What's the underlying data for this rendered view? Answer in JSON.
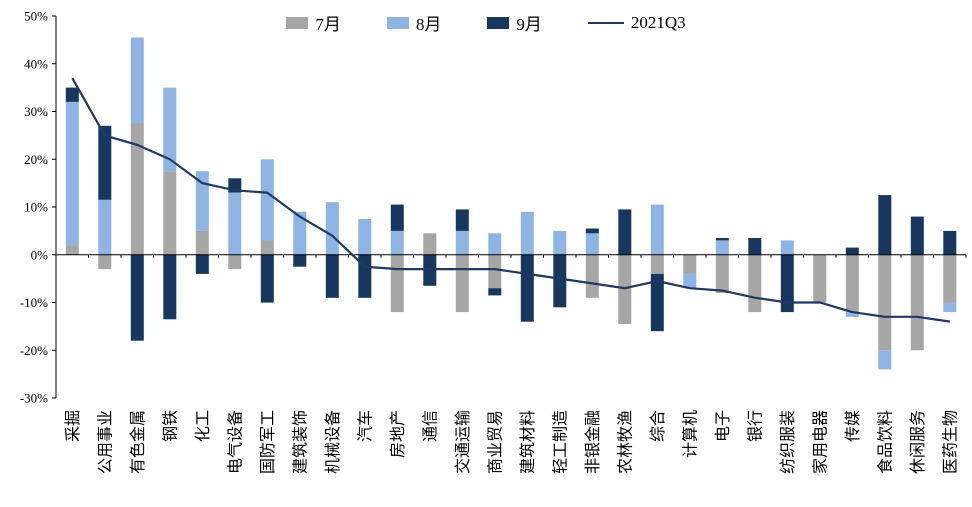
{
  "chart_data": {
    "type": "bar",
    "stacked": true,
    "title": "",
    "xlabel": "",
    "ylabel": "",
    "ylim": [
      -30,
      50
    ],
    "grid": false,
    "legend_position": "top",
    "categories": [
      "采掘",
      "公用事业",
      "有色金属",
      "钢铁",
      "化工",
      "电气设备",
      "国防军工",
      "建筑装饰",
      "机械设备",
      "汽车",
      "房地产",
      "通信",
      "交通运输",
      "商业贸易",
      "建筑材料",
      "轻工制造",
      "非银金融",
      "农林牧渔",
      "综合",
      "计算机",
      "电子",
      "银行",
      "纺织服装",
      "家用电器",
      "传媒",
      "食品饮料",
      "休闲服务",
      "医药生物"
    ],
    "series": [
      {
        "name": "7月",
        "color": "#a6a6a6",
        "values": [
          2,
          -3,
          27.5,
          17.5,
          5,
          -3,
          3,
          0,
          0,
          0,
          -12,
          4.5,
          -12,
          -7,
          0,
          0,
          -9,
          -14.5,
          -4,
          -4,
          -8,
          -12,
          0,
          -10,
          -12,
          -20,
          -20,
          -10
        ]
      },
      {
        "name": "8月",
        "color": "#8eb4e3",
        "values": [
          30,
          11.5,
          18,
          17.5,
          12.5,
          13,
          17,
          9,
          11,
          7.5,
          5,
          0,
          5,
          4.5,
          9,
          5,
          4.5,
          0,
          10.5,
          -3,
          3,
          0,
          3,
          0,
          -1,
          -4,
          0,
          -2
        ]
      },
      {
        "name": "9月",
        "color": "#17375e",
        "values": [
          3,
          15.5,
          -18,
          -13.5,
          -4,
          3,
          -10,
          -2.5,
          -9,
          -9,
          5.5,
          -6.5,
          4.5,
          -1.5,
          -14,
          -11,
          1,
          9.5,
          -12,
          0,
          0.5,
          3.5,
          -12,
          0,
          1.5,
          12.5,
          8,
          5
        ]
      }
    ],
    "line": {
      "name": "2021Q3",
      "color": "#1f3864",
      "values": [
        37,
        25,
        23,
        20,
        15,
        13.5,
        13,
        8,
        4,
        -2.5,
        -3,
        -3,
        -3,
        -3,
        -4,
        -5,
        -6,
        -7,
        -5.5,
        -7,
        -7.5,
        -9,
        -10,
        -10,
        -12,
        -13,
        -13,
        -14
      ]
    },
    "y_ticks": [
      {
        "label": "50%",
        "value": 50
      },
      {
        "label": "40%",
        "value": 40
      },
      {
        "label": "30%",
        "value": 30
      },
      {
        "label": "20%",
        "value": 20
      },
      {
        "label": "10%",
        "value": 10
      },
      {
        "label": "0%",
        "value": 0
      },
      {
        "label": "-10%",
        "value": -10
      },
      {
        "label": "-20%",
        "value": -20
      },
      {
        "label": "-30%",
        "value": -30
      }
    ]
  }
}
